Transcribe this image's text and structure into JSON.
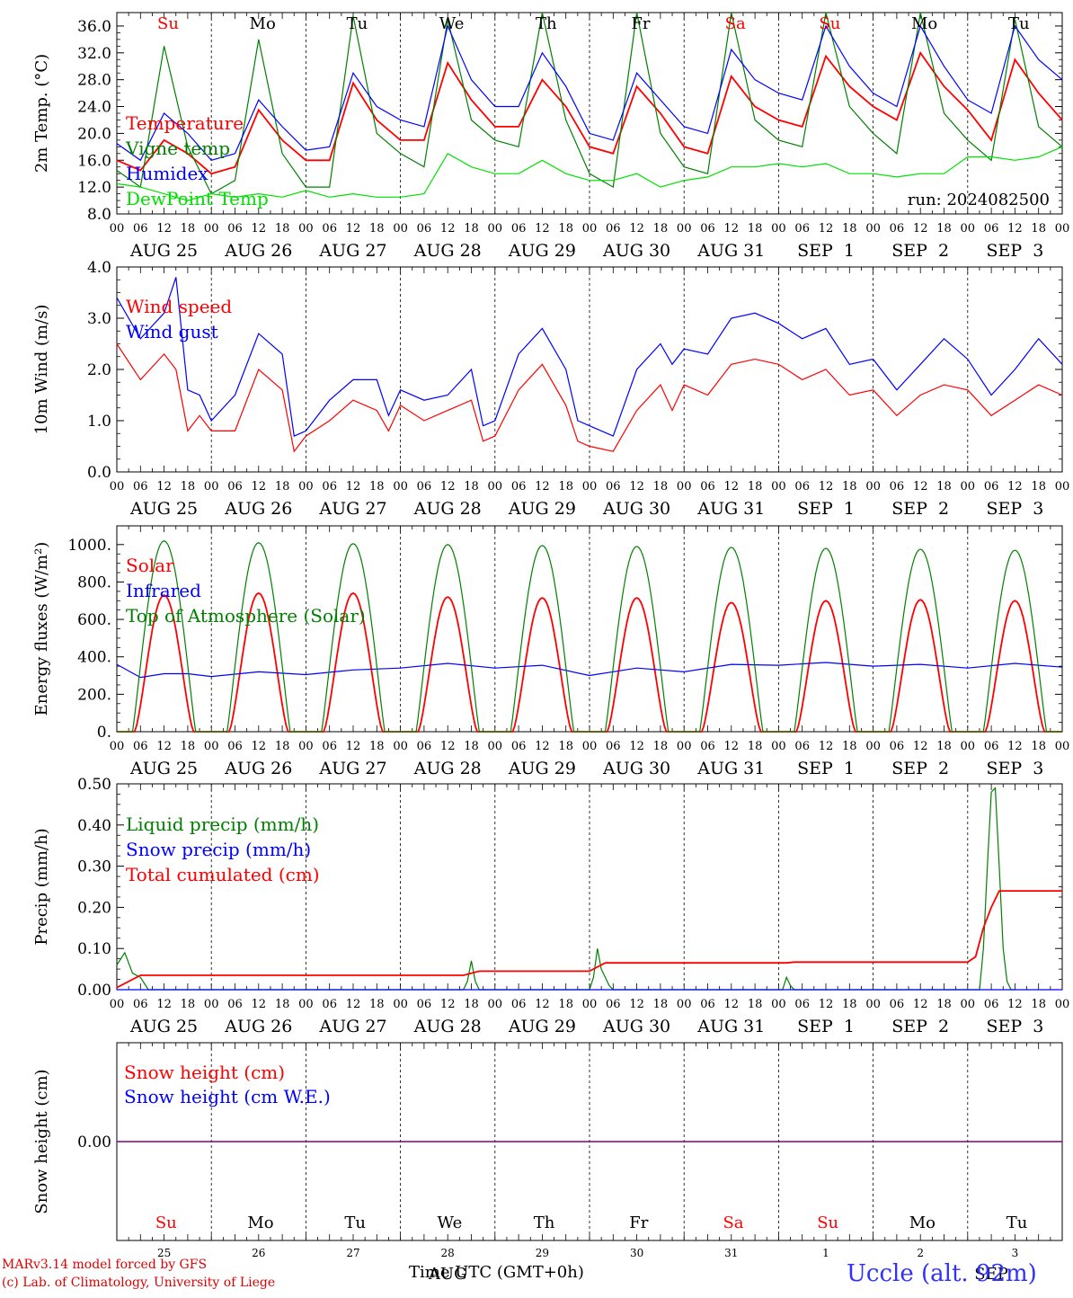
{
  "chart_data": [
    {
      "type": "line",
      "ylabel": "2m Temp. (°C)",
      "ylim": [
        8,
        38
      ],
      "yticks": [
        "36.0",
        "32.0",
        "28.0",
        "24.0",
        "20.0",
        "16.0",
        "12.0",
        "8.0"
      ],
      "ytick_values": [
        36,
        32,
        28,
        24,
        20,
        16,
        12,
        8
      ],
      "annotation": "run: 2024082500",
      "legend": [
        {
          "name": "Temperature",
          "color": "#ff0000"
        },
        {
          "name": "Vigne temp",
          "color": "#008000"
        },
        {
          "name": "Humidex",
          "color": "#0000ff"
        },
        {
          "name": "DewPoint Temp",
          "color": "#00e000"
        }
      ],
      "series": [
        {
          "name": "Temperature",
          "color": "#ff0000",
          "x": [
            0,
            6,
            12,
            18,
            24,
            30,
            36,
            42,
            48,
            54,
            60,
            66,
            72,
            78,
            84,
            90,
            96,
            102,
            108,
            114,
            120,
            126,
            132,
            138,
            144,
            150,
            156,
            162,
            168,
            174,
            180,
            186,
            192,
            198,
            204,
            210,
            216,
            222,
            228,
            234,
            240
          ],
          "values": [
            16,
            14.5,
            19,
            17,
            14,
            15,
            23.5,
            19,
            16,
            16,
            27.5,
            22,
            19,
            19,
            30.5,
            25,
            21,
            21,
            28,
            24,
            18,
            17,
            27,
            23,
            18,
            17,
            28.5,
            24,
            22,
            21,
            31.5,
            27,
            24,
            22,
            32,
            27,
            23.5,
            19,
            31,
            26,
            22
          ]
        },
        {
          "name": "Vigne temp",
          "color": "#008000",
          "x": [
            0,
            6,
            12,
            18,
            24,
            30,
            36,
            42,
            48,
            54,
            60,
            66,
            72,
            78,
            84,
            90,
            96,
            102,
            108,
            114,
            120,
            126,
            132,
            138,
            144,
            150,
            156,
            162,
            168,
            174,
            180,
            186,
            192,
            198,
            204,
            210,
            216,
            222,
            228,
            234,
            240
          ],
          "values": [
            14.5,
            12,
            33,
            18,
            11,
            13,
            34,
            17,
            12,
            12,
            37.5,
            20,
            17,
            15,
            37,
            22,
            19,
            18,
            38,
            22,
            14,
            12,
            38,
            20,
            15,
            14,
            38,
            22,
            19,
            18,
            38,
            24,
            20,
            17,
            38,
            23,
            19,
            16,
            37,
            21,
            18
          ]
        },
        {
          "name": "Humidex",
          "color": "#0000ff",
          "x": [
            0,
            6,
            12,
            18,
            24,
            30,
            36,
            42,
            48,
            54,
            60,
            66,
            72,
            78,
            84,
            90,
            96,
            102,
            108,
            114,
            120,
            126,
            132,
            138,
            144,
            150,
            156,
            162,
            168,
            174,
            180,
            186,
            192,
            198,
            204,
            210,
            216,
            222,
            228,
            234,
            240
          ],
          "values": [
            18.5,
            16,
            23,
            20,
            16,
            17,
            25,
            21,
            17.5,
            18,
            29,
            24,
            22,
            21,
            36,
            28,
            24,
            24,
            32,
            27,
            20,
            19,
            29,
            25,
            21,
            20,
            32.5,
            28,
            26,
            25,
            36,
            30,
            26,
            24,
            36,
            30,
            25,
            23,
            36,
            31,
            28
          ]
        },
        {
          "name": "DewPoint Temp",
          "color": "#00e000",
          "x": [
            0,
            6,
            12,
            18,
            24,
            30,
            36,
            42,
            48,
            54,
            60,
            66,
            72,
            78,
            84,
            90,
            96,
            102,
            108,
            114,
            120,
            126,
            132,
            138,
            144,
            150,
            156,
            162,
            168,
            174,
            180,
            186,
            192,
            198,
            204,
            210,
            216,
            222,
            228,
            234,
            240
          ],
          "values": [
            12.5,
            12,
            11,
            10,
            11,
            10.5,
            11,
            10.5,
            11.5,
            10.5,
            11,
            10.5,
            10.5,
            11,
            17,
            15,
            14,
            14,
            16,
            14,
            13,
            13,
            14,
            12,
            13,
            13.5,
            15,
            15,
            15.5,
            15,
            15.5,
            14,
            14,
            13.5,
            14,
            14,
            16.5,
            16.5,
            16,
            16.5,
            18
          ]
        }
      ]
    },
    {
      "type": "line",
      "ylabel": "10m Wind (m/s)",
      "ylim": [
        0,
        4
      ],
      "yticks": [
        "4.0",
        "3.0",
        "2.0",
        "1.0",
        "0.0"
      ],
      "ytick_values": [
        4,
        3,
        2,
        1,
        0
      ],
      "legend": [
        {
          "name": "Wind speed",
          "color": "#ff0000"
        },
        {
          "name": "Wind gust",
          "color": "#0000ff"
        }
      ],
      "series": [
        {
          "name": "Wind speed",
          "color": "#ff0000",
          "x": [
            0,
            6,
            12,
            15,
            18,
            21,
            24,
            30,
            36,
            42,
            45,
            48,
            54,
            60,
            66,
            69,
            72,
            78,
            84,
            90,
            93,
            96,
            102,
            108,
            114,
            117,
            120,
            126,
            132,
            138,
            141,
            144,
            150,
            156,
            162,
            168,
            174,
            180,
            186,
            192,
            198,
            204,
            210,
            216,
            222,
            228,
            234,
            240
          ],
          "values": [
            2.5,
            1.8,
            2.3,
            2.0,
            0.8,
            1.1,
            0.8,
            0.8,
            2.0,
            1.6,
            0.4,
            0.7,
            1.0,
            1.4,
            1.2,
            0.8,
            1.3,
            1.0,
            1.2,
            1.4,
            0.6,
            0.7,
            1.6,
            2.1,
            1.3,
            0.6,
            0.5,
            0.4,
            1.2,
            1.7,
            1.2,
            1.7,
            1.5,
            2.1,
            2.2,
            2.1,
            1.8,
            2.0,
            1.5,
            1.6,
            1.1,
            1.5,
            1.7,
            1.6,
            1.1,
            1.4,
            1.7,
            1.5
          ]
        },
        {
          "name": "Wind gust",
          "color": "#0000ff",
          "x": [
            0,
            6,
            12,
            15,
            18,
            21,
            24,
            30,
            36,
            42,
            45,
            48,
            54,
            60,
            66,
            69,
            72,
            78,
            84,
            90,
            93,
            96,
            102,
            108,
            114,
            117,
            120,
            126,
            132,
            138,
            141,
            144,
            150,
            156,
            162,
            168,
            174,
            180,
            186,
            192,
            198,
            204,
            210,
            216,
            222,
            228,
            234,
            240
          ],
          "values": [
            3.4,
            2.6,
            3.1,
            3.8,
            1.6,
            1.5,
            1.0,
            1.5,
            2.7,
            2.3,
            0.7,
            0.8,
            1.4,
            1.8,
            1.8,
            1.1,
            1.6,
            1.4,
            1.5,
            2.0,
            0.9,
            1.0,
            2.3,
            2.8,
            2.0,
            1.0,
            0.9,
            0.7,
            2.0,
            2.5,
            2.1,
            2.4,
            2.3,
            3.0,
            3.1,
            2.9,
            2.6,
            2.8,
            2.1,
            2.2,
            1.6,
            2.1,
            2.6,
            2.2,
            1.5,
            2.0,
            2.6,
            2.1
          ]
        }
      ]
    },
    {
      "type": "line",
      "ylabel": "Energy fluxes (W/m²)",
      "ylim": [
        0,
        1100
      ],
      "yticks": [
        "1000.",
        "800.",
        "600.",
        "400.",
        "200.",
        "0."
      ],
      "ytick_values": [
        1000,
        800,
        600,
        400,
        200,
        0
      ],
      "legend": [
        {
          "name": "Solar",
          "color": "#ff0000"
        },
        {
          "name": "Infrared",
          "color": "#0000ff"
        },
        {
          "name": "Top of Atmosphere (Solar)",
          "color": "#008000"
        }
      ],
      "series": [
        {
          "name": "Solar",
          "color": "#ff0000",
          "peaks": [
            730,
            740,
            740,
            720,
            715,
            715,
            690,
            700,
            705,
            700
          ]
        },
        {
          "name": "Infrared",
          "color": "#0000ff",
          "x": [
            0,
            6,
            12,
            18,
            24,
            36,
            48,
            60,
            72,
            84,
            96,
            108,
            120,
            132,
            144,
            156,
            168,
            180,
            192,
            204,
            216,
            228,
            240
          ],
          "values": [
            360,
            290,
            310,
            310,
            295,
            320,
            305,
            330,
            340,
            365,
            340,
            355,
            300,
            340,
            320,
            360,
            355,
            370,
            350,
            360,
            340,
            365,
            345
          ]
        },
        {
          "name": "Top of Atmosphere (Solar)",
          "color": "#008000",
          "peaks": [
            1020,
            1010,
            1005,
            1000,
            995,
            990,
            985,
            980,
            975,
            970
          ]
        }
      ]
    },
    {
      "type": "line",
      "ylabel": "Precip (mm/h)",
      "ylim": [
        0,
        0.5
      ],
      "yticks": [
        "0.50",
        "0.40",
        "0.30",
        "0.20",
        "0.10",
        "0.00"
      ],
      "ytick_values": [
        0.5,
        0.4,
        0.3,
        0.2,
        0.1,
        0
      ],
      "legend": [
        {
          "name": "Liquid precip (mm/h)",
          "color": "#008000"
        },
        {
          "name": "Snow precip (mm/h)",
          "color": "#0000ff"
        },
        {
          "name": "Total cumulated (cm)",
          "color": "#ff0000"
        }
      ],
      "series": [
        {
          "name": "Liquid precip (mm/h)",
          "color": "#008000",
          "x": [
            0,
            2,
            4,
            6,
            8,
            88,
            89,
            90,
            91,
            92,
            120,
            121,
            122,
            123,
            124,
            125,
            126,
            169,
            170,
            171,
            172,
            219,
            220,
            221,
            222,
            223,
            224,
            225,
            226,
            227,
            228
          ],
          "values": [
            0.06,
            0.09,
            0.04,
            0.03,
            0,
            0,
            0.02,
            0.07,
            0.02,
            0,
            0,
            0.03,
            0.1,
            0.05,
            0.03,
            0.01,
            0,
            0,
            0.03,
            0.01,
            0,
            0,
            0.1,
            0.3,
            0.48,
            0.49,
            0.3,
            0.1,
            0.02,
            0,
            0
          ]
        },
        {
          "name": "Snow precip (mm/h)",
          "color": "#0000ff",
          "x": [
            0,
            240
          ],
          "values": [
            0,
            0
          ]
        },
        {
          "name": "Total cumulated (cm)",
          "color": "#ff0000",
          "x": [
            0,
            6,
            88,
            92,
            120,
            124,
            170,
            172,
            216,
            218,
            220,
            222,
            224,
            240
          ],
          "values": [
            0.005,
            0.035,
            0.035,
            0.045,
            0.045,
            0.065,
            0.065,
            0.067,
            0.067,
            0.08,
            0.15,
            0.2,
            0.24,
            0.24
          ]
        }
      ]
    },
    {
      "type": "line",
      "ylabel": "Snow height (cm)",
      "ytick_label": "0.00",
      "legend": [
        {
          "name": "Snow height (cm)",
          "color": "#ff0000"
        },
        {
          "name": "Snow height (cm W.E.)",
          "color": "#0000ff"
        }
      ],
      "series": [
        {
          "name": "Snow height (cm)",
          "color": "#ff0000",
          "x": [
            0,
            240
          ],
          "values": [
            0,
            0
          ]
        },
        {
          "name": "Snow height (cm W.E.)",
          "color": "#0000ff",
          "x": [
            0,
            240
          ],
          "values": [
            0,
            0
          ]
        }
      ]
    }
  ],
  "days": [
    {
      "abbr": "Su",
      "date": "AUG 25",
      "num": "25",
      "color": "#ff0000"
    },
    {
      "abbr": "Mo",
      "date": "AUG 26",
      "num": "26",
      "color": "#000000"
    },
    {
      "abbr": "Tu",
      "date": "AUG 27",
      "num": "27",
      "color": "#000000"
    },
    {
      "abbr": "We",
      "date": "AUG 28",
      "num": "28",
      "color": "#000000"
    },
    {
      "abbr": "Th",
      "date": "AUG 29",
      "num": "29",
      "color": "#000000"
    },
    {
      "abbr": "Fr",
      "date": "AUG 30",
      "num": "30",
      "color": "#000000"
    },
    {
      "abbr": "Sa",
      "date": "AUG 31",
      "num": "31",
      "color": "#ff0000"
    },
    {
      "abbr": "Su",
      "date": "SEP  1",
      "num": "1",
      "color": "#ff0000"
    },
    {
      "abbr": "Mo",
      "date": "SEP  2",
      "num": "2",
      "color": "#000000"
    },
    {
      "abbr": "Tu",
      "date": "SEP  3",
      "num": "3",
      "color": "#000000"
    }
  ],
  "hour_ticks": [
    "00",
    "06",
    "12",
    "18"
  ],
  "hour_end": "00",
  "bottom_month_labels": [
    "AUG",
    "SEP"
  ],
  "xlabel": "Time UTC (GMT+0h)",
  "footer": {
    "line1": "MARv3.14 model forced by GFS",
    "line2": "(c) Lab. of Climatology, University of Liege",
    "station": "Uccle (alt. 92m)"
  }
}
